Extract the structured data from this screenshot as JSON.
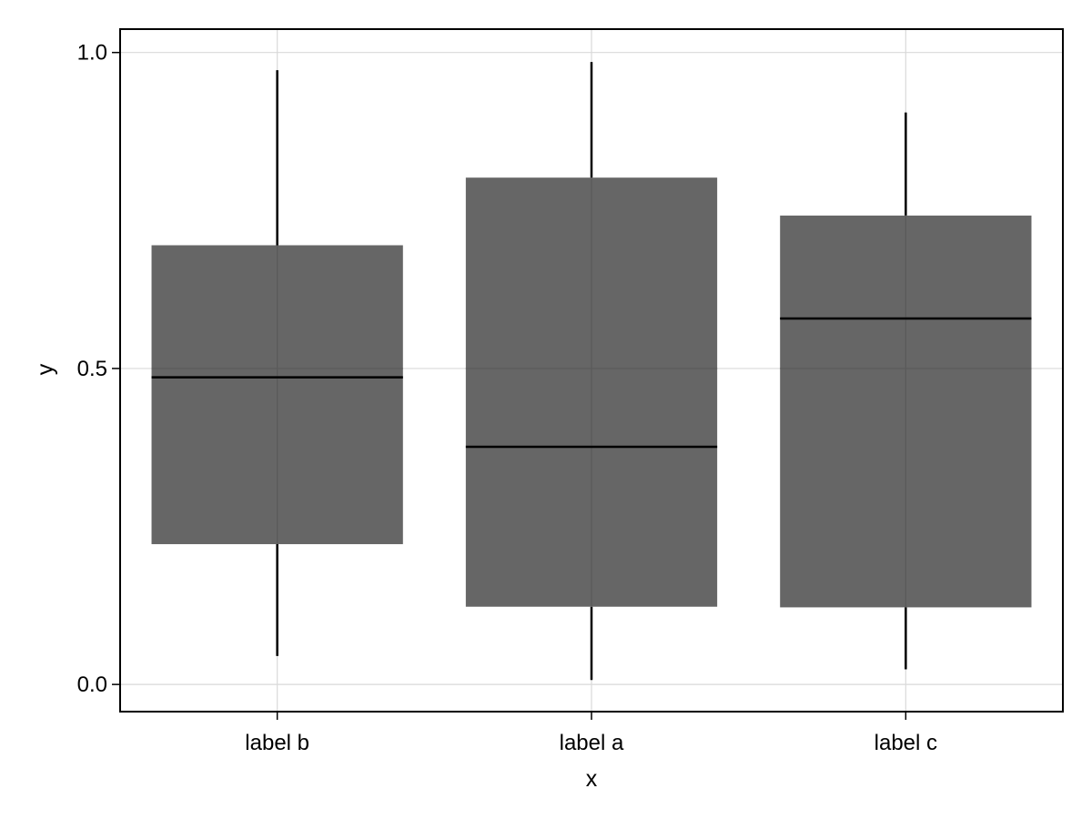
{
  "chart_data": {
    "type": "box",
    "categories": [
      "label b",
      "label a",
      "label c"
    ],
    "boxes": [
      {
        "category": "label b",
        "whisker_low": 0.045,
        "q1": 0.222,
        "median": 0.486,
        "q3": 0.695,
        "whisker_high": 0.972
      },
      {
        "category": "label a",
        "whisker_low": 0.007,
        "q1": 0.123,
        "median": 0.376,
        "q3": 0.802,
        "whisker_high": 0.985
      },
      {
        "category": "label c",
        "whisker_low": 0.024,
        "q1": 0.122,
        "median": 0.579,
        "q3": 0.742,
        "whisker_high": 0.905
      }
    ],
    "xlabel": "x",
    "ylabel": "y",
    "yticks": [
      0.0,
      0.5,
      1.0
    ],
    "ytick_labels": [
      "0.0",
      "0.5",
      "1.0"
    ],
    "ylim": [
      -0.043,
      1.037
    ],
    "grid": true,
    "legend": "none",
    "colors": {
      "box_fill": "#666666",
      "median_line": "#000000",
      "whisker": "#000000",
      "grid": "#d9d9d9",
      "frame": "#000000"
    }
  }
}
